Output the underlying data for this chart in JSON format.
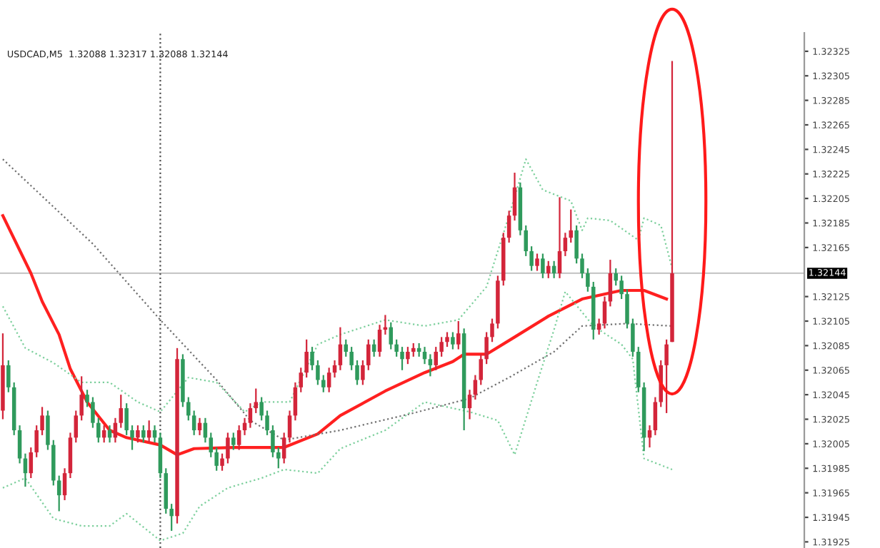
{
  "chart_data": {
    "type": "candlestick",
    "title": "USDCAD,M5  1.32088 1.32317 1.32088 1.32144",
    "categories": [
      null,
      null,
      null,
      null,
      null,
      null,
      null,
      null,
      null,
      null,
      null,
      null,
      null,
      null,
      null,
      null,
      null,
      null,
      null,
      null,
      null,
      null,
      null,
      null,
      null,
      null,
      null,
      null,
      null,
      null,
      null,
      null,
      null,
      null,
      null,
      null,
      null,
      null,
      null,
      null,
      null,
      null,
      null,
      null,
      null,
      null,
      null,
      null,
      null,
      null,
      null,
      null,
      null,
      null,
      null,
      null,
      null,
      null,
      null,
      null,
      null,
      null,
      null,
      null,
      null,
      null,
      null,
      null,
      null,
      null,
      null,
      null,
      null,
      null,
      null,
      null,
      null,
      null,
      null,
      null,
      null,
      null,
      null,
      null,
      null,
      null,
      null,
      null,
      null,
      null,
      null,
      null,
      null,
      null,
      null,
      null,
      null,
      null,
      null,
      null,
      null,
      null,
      null,
      null,
      null,
      null,
      null,
      null,
      null,
      null,
      null,
      null,
      null,
      null,
      null,
      null,
      null,
      null,
      null,
      null,
      null,
      null,
      null,
      null,
      null,
      null,
      null,
      null,
      null,
      null,
      null,
      null,
      null,
      null,
      null,
      null,
      null,
      null,
      null,
      null,
      null,
      null,
      null
    ],
    "ohlc": [
      [
        1.32032,
        1.32095,
        1.32025,
        1.32069
      ],
      [
        1.32069,
        1.32073,
        1.32047,
        1.32051
      ],
      [
        1.32051,
        1.32055,
        1.32012,
        1.32016
      ],
      [
        1.32016,
        1.3202,
        1.31989,
        1.31993
      ],
      [
        1.31993,
        1.31997,
        1.3197,
        1.31981
      ],
      [
        1.31981,
        1.32002,
        1.31977,
        1.31998
      ],
      [
        1.31998,
        1.3202,
        1.31994,
        1.32016
      ],
      [
        1.32016,
        1.32035,
        1.32012,
        1.32028
      ],
      [
        1.32028,
        1.32032,
        1.32,
        1.32004
      ],
      [
        1.32004,
        1.32008,
        1.31971,
        1.31975
      ],
      [
        1.31975,
        1.31979,
        1.3195,
        1.31963
      ],
      [
        1.31963,
        1.31985,
        1.31959,
        1.31981
      ],
      [
        1.31981,
        1.32014,
        1.31977,
        1.3201
      ],
      [
        1.3201,
        1.32032,
        1.32006,
        1.32028
      ],
      [
        1.32028,
        1.3206,
        1.32024,
        1.32045
      ],
      [
        1.32045,
        1.32049,
        1.32035,
        1.32039
      ],
      [
        1.32039,
        1.32043,
        1.32018,
        1.32022
      ],
      [
        1.32022,
        1.32026,
        1.32006,
        1.3201
      ],
      [
        1.3201,
        1.3202,
        1.32006,
        1.32016
      ],
      [
        1.32016,
        1.3202,
        1.32006,
        1.3201
      ],
      [
        1.3201,
        1.32026,
        1.32006,
        1.32022
      ],
      [
        1.32022,
        1.32045,
        1.32018,
        1.32034
      ],
      [
        1.32034,
        1.32038,
        1.32012,
        1.32016
      ],
      [
        1.32016,
        1.3202,
        1.32,
        1.3201
      ],
      [
        1.3201,
        1.3202,
        1.32006,
        1.32016
      ],
      [
        1.32016,
        1.3202,
        1.32006,
        1.3201
      ],
      [
        1.3201,
        1.32024,
        1.32006,
        1.32016
      ],
      [
        1.32016,
        1.3202,
        1.32006,
        1.3201
      ],
      [
        1.3201,
        1.32014,
        1.31977,
        1.31981
      ],
      [
        1.31981,
        1.31985,
        1.31948,
        1.31952
      ],
      [
        1.31952,
        1.31956,
        1.31934,
        1.31946
      ],
      [
        1.31946,
        1.32083,
        1.3194,
        1.32074
      ],
      [
        1.32074,
        1.32078,
        1.32035,
        1.32039
      ],
      [
        1.32039,
        1.32043,
        1.32024,
        1.32028
      ],
      [
        1.32028,
        1.32032,
        1.32012,
        1.32016
      ],
      [
        1.32016,
        1.32026,
        1.32012,
        1.32022
      ],
      [
        1.32022,
        1.32026,
        1.32006,
        1.3201
      ],
      [
        1.3201,
        1.32014,
        1.31994,
        1.31998
      ],
      [
        1.31998,
        1.32002,
        1.31983,
        1.31987
      ],
      [
        1.31987,
        1.31997,
        1.31983,
        1.31993
      ],
      [
        1.31993,
        1.32014,
        1.31989,
        1.3201
      ],
      [
        1.3201,
        1.32014,
        1.32,
        1.32004
      ],
      [
        1.32004,
        1.3202,
        1.32,
        1.32016
      ],
      [
        1.32016,
        1.32026,
        1.32012,
        1.32022
      ],
      [
        1.32022,
        1.32038,
        1.32018,
        1.32034
      ],
      [
        1.32034,
        1.3205,
        1.3203,
        1.32039
      ],
      [
        1.32039,
        1.32043,
        1.32024,
        1.32028
      ],
      [
        1.32028,
        1.32032,
        1.32012,
        1.32016
      ],
      [
        1.32016,
        1.3202,
        1.31994,
        1.31998
      ],
      [
        1.31998,
        1.32002,
        1.31985,
        1.31993
      ],
      [
        1.31993,
        1.32014,
        1.31989,
        1.3201
      ],
      [
        1.3201,
        1.32032,
        1.32006,
        1.32028
      ],
      [
        1.32028,
        1.32055,
        1.32024,
        1.32051
      ],
      [
        1.32051,
        1.32067,
        1.32047,
        1.32063
      ],
      [
        1.32063,
        1.3209,
        1.32059,
        1.3208
      ],
      [
        1.3208,
        1.32084,
        1.32065,
        1.32069
      ],
      [
        1.32069,
        1.32073,
        1.32053,
        1.32057
      ],
      [
        1.32057,
        1.32061,
        1.32047,
        1.32051
      ],
      [
        1.32051,
        1.32067,
        1.32047,
        1.32063
      ],
      [
        1.32063,
        1.32073,
        1.32059,
        1.32069
      ],
      [
        1.32069,
        1.321,
        1.32065,
        1.32086
      ],
      [
        1.32086,
        1.3209,
        1.32076,
        1.3208
      ],
      [
        1.3208,
        1.32084,
        1.32065,
        1.32069
      ],
      [
        1.32069,
        1.32073,
        1.32053,
        1.32057
      ],
      [
        1.32057,
        1.32073,
        1.32053,
        1.32069
      ],
      [
        1.32069,
        1.3209,
        1.32065,
        1.32086
      ],
      [
        1.32086,
        1.3209,
        1.32076,
        1.3208
      ],
      [
        1.3208,
        1.32102,
        1.32076,
        1.32098
      ],
      [
        1.32098,
        1.3211,
        1.32094,
        1.321
      ],
      [
        1.321,
        1.32104,
        1.32082,
        1.32086
      ],
      [
        1.32086,
        1.3209,
        1.32076,
        1.3208
      ],
      [
        1.3208,
        1.32084,
        1.32065,
        1.32074
      ],
      [
        1.32074,
        1.32084,
        1.3207,
        1.3208
      ],
      [
        1.3208,
        1.32087,
        1.32076,
        1.32083
      ],
      [
        1.32083,
        1.32087,
        1.32076,
        1.3208
      ],
      [
        1.3208,
        1.32084,
        1.3207,
        1.32074
      ],
      [
        1.32074,
        1.32078,
        1.3206,
        1.32069
      ],
      [
        1.32069,
        1.32084,
        1.32065,
        1.3208
      ],
      [
        1.3208,
        1.32092,
        1.32076,
        1.32088
      ],
      [
        1.32088,
        1.32096,
        1.32084,
        1.32092
      ],
      [
        1.32092,
        1.32096,
        1.32082,
        1.32086
      ],
      [
        1.32086,
        1.32105,
        1.32082,
        1.32095
      ],
      [
        1.32095,
        1.32099,
        1.32016,
        1.32034
      ],
      [
        1.32034,
        1.32049,
        1.32025,
        1.32045
      ],
      [
        1.32045,
        1.32061,
        1.32041,
        1.32057
      ],
      [
        1.32057,
        1.32078,
        1.32053,
        1.32074
      ],
      [
        1.32074,
        1.32096,
        1.3207,
        1.32092
      ],
      [
        1.32092,
        1.32107,
        1.32088,
        1.32103
      ],
      [
        1.32103,
        1.32142,
        1.32099,
        1.32138
      ],
      [
        1.32138,
        1.32177,
        1.32134,
        1.32173
      ],
      [
        1.32173,
        1.32195,
        1.32169,
        1.32191
      ],
      [
        1.32191,
        1.32226,
        1.32187,
        1.32214
      ],
      [
        1.32214,
        1.32218,
        1.32175,
        1.32179
      ],
      [
        1.32179,
        1.32183,
        1.32158,
        1.32162
      ],
      [
        1.32162,
        1.32166,
        1.32146,
        1.3215
      ],
      [
        1.3215,
        1.3216,
        1.32146,
        1.32156
      ],
      [
        1.32156,
        1.3216,
        1.3214,
        1.32144
      ],
      [
        1.32144,
        1.32154,
        1.3214,
        1.3215
      ],
      [
        1.3215,
        1.32154,
        1.3214,
        1.32144
      ],
      [
        1.32144,
        1.32206,
        1.3214,
        1.32162
      ],
      [
        1.32162,
        1.32177,
        1.32158,
        1.32173
      ],
      [
        1.32173,
        1.32196,
        1.32169,
        1.32179
      ],
      [
        1.32179,
        1.32183,
        1.32152,
        1.32156
      ],
      [
        1.32156,
        1.3216,
        1.3214,
        1.32144
      ],
      [
        1.32144,
        1.32148,
        1.32129,
        1.32133
      ],
      [
        1.32133,
        1.32137,
        1.3209,
        1.32098
      ],
      [
        1.32098,
        1.32107,
        1.32094,
        1.32103
      ],
      [
        1.32103,
        1.32125,
        1.32099,
        1.32121
      ],
      [
        1.32121,
        1.32155,
        1.32117,
        1.32144
      ],
      [
        1.32144,
        1.32148,
        1.32134,
        1.32138
      ],
      [
        1.32138,
        1.32142,
        1.32123,
        1.32127
      ],
      [
        1.32127,
        1.32131,
        1.32099,
        1.32103
      ],
      [
        1.32103,
        1.32107,
        1.32076,
        1.3208
      ],
      [
        1.3208,
        1.32084,
        1.32047,
        1.32051
      ],
      [
        1.32051,
        1.32055,
        1.31999,
        1.3201
      ],
      [
        1.3201,
        1.3202,
        1.32002,
        1.32016
      ],
      [
        1.32016,
        1.32043,
        1.32012,
        1.32039
      ],
      [
        1.32039,
        1.32073,
        1.32035,
        1.32069
      ],
      [
        1.32069,
        1.3209,
        1.3203,
        1.32086
      ],
      [
        1.32088,
        1.32317,
        1.32088,
        1.32144
      ],
      null,
      null,
      null,
      null,
      null,
      null,
      null,
      null,
      null,
      null,
      null,
      null,
      null,
      null,
      null,
      null,
      null,
      null,
      null,
      null,
      null,
      null,
      null
    ],
    "series": [
      {
        "type": "line",
        "color": "#ff2020",
        "line_style": "solid",
        "values": [
          1.32191,
          null,
          null,
          null,
          null,
          1.32144,
          null,
          1.32121,
          null,
          null,
          1.32094,
          null,
          1.32066,
          null,
          null,
          1.32039,
          null,
          null,
          null,
          1.32016,
          null,
          null,
          1.3201,
          null,
          null,
          null,
          null,
          null,
          1.32004,
          null,
          null,
          1.31996,
          null,
          null,
          1.32001,
          null,
          null,
          null,
          null,
          null,
          null,
          1.32002,
          null,
          null,
          null,
          null,
          null,
          null,
          null,
          null,
          1.32002,
          null,
          null,
          null,
          null,
          null,
          1.32013,
          null,
          null,
          null,
          1.32028,
          null,
          null,
          null,
          null,
          null,
          null,
          null,
          1.32048,
          null,
          null,
          null,
          null,
          null,
          null,
          1.32063,
          null,
          null,
          null,
          null,
          1.32072,
          null,
          1.32078,
          null,
          null,
          null,
          1.32078,
          null,
          null,
          null,
          null,
          1.32092,
          null,
          null,
          null,
          null,
          null,
          1.32109,
          null,
          null,
          null,
          null,
          null,
          1.32123,
          null,
          null,
          null,
          null,
          null,
          null,
          1.3213,
          null,
          null,
          null,
          1.3213,
          null,
          null,
          null,
          1.32123,
          null,
          null,
          null,
          null,
          null,
          null,
          null,
          null,
          null,
          null,
          null,
          null,
          null,
          null,
          null,
          null,
          null,
          null,
          null,
          null,
          null,
          null,
          null,
          null
        ]
      },
      {
        "type": "line",
        "color": "#707070",
        "line_style": "dotted",
        "values": [
          1.32237,
          null,
          null,
          null,
          null,
          null,
          null,
          null,
          null,
          null,
          null,
          null,
          null,
          null,
          null,
          null,
          1.32168,
          null,
          null,
          null,
          null,
          null,
          null,
          null,
          null,
          null,
          null,
          null,
          1.32106,
          null,
          null,
          null,
          null,
          null,
          null,
          null,
          null,
          null,
          1.32057,
          null,
          null,
          null,
          null,
          null,
          1.32024,
          null,
          null,
          null,
          null,
          null,
          1.32008,
          null,
          null,
          null,
          null,
          null,
          null,
          null,
          null,
          null,
          1.32016,
          null,
          null,
          null,
          null,
          null,
          null,
          null,
          null,
          null,
          null,
          null,
          null,
          1.3203,
          null,
          null,
          null,
          null,
          null,
          null,
          null,
          null,
          null,
          1.32042,
          null,
          null,
          null,
          null,
          null,
          null,
          1.32059,
          null,
          null,
          null,
          null,
          null,
          null,
          null,
          1.3208,
          null,
          null,
          null,
          null,
          1.32101,
          null,
          null,
          null,
          null,
          null,
          null,
          null,
          1.32103,
          null,
          null,
          null,
          null,
          null,
          null,
          null,
          1.32101,
          null,
          null,
          null,
          null,
          null,
          null,
          null,
          null,
          null,
          null,
          null,
          null,
          null,
          null,
          null,
          null,
          null,
          null,
          null,
          null,
          null,
          null,
          null
        ]
      },
      {
        "type": "line",
        "color": "#7ccf9c",
        "line_style": "dotted",
        "values": [
          1.32117,
          null,
          null,
          null,
          1.32083,
          null,
          null,
          null,
          null,
          1.32071,
          null,
          null,
          null,
          null,
          1.32055,
          null,
          null,
          null,
          null,
          1.32055,
          null,
          null,
          null,
          null,
          1.32039,
          null,
          null,
          null,
          1.32031,
          null,
          null,
          null,
          null,
          1.32059,
          null,
          null,
          null,
          null,
          1.32055,
          null,
          null,
          null,
          null,
          1.32031,
          null,
          null,
          1.32039,
          null,
          null,
          null,
          null,
          1.32039,
          null,
          null,
          null,
          null,
          1.32086,
          null,
          null,
          null,
          1.32094,
          null,
          null,
          null,
          null,
          null,
          null,
          null,
          1.32106,
          null,
          null,
          null,
          null,
          null,
          null,
          1.32101,
          null,
          null,
          null,
          null,
          null,
          1.32106,
          null,
          null,
          null,
          null,
          1.32133,
          null,
          null,
          null,
          1.32191,
          null,
          null,
          1.32237,
          null,
          null,
          1.32212,
          null,
          null,
          null,
          null,
          1.32203,
          null,
          1.32179,
          1.32189,
          null,
          null,
          null,
          1.32187,
          null,
          null,
          null,
          null,
          1.32171,
          1.32189,
          null,
          null,
          1.32183,
          null,
          1.32148,
          null,
          null,
          null,
          null,
          null,
          null,
          null,
          null,
          null,
          null,
          null,
          null,
          null,
          null,
          null,
          null,
          null,
          null,
          null,
          null,
          null,
          null,
          null
        ]
      },
      {
        "type": "line",
        "color": "#7ccf9c",
        "line_style": "dotted",
        "values": [
          1.31969,
          null,
          null,
          null,
          1.31977,
          null,
          null,
          null,
          null,
          1.31944,
          null,
          null,
          null,
          null,
          1.31938,
          null,
          null,
          null,
          null,
          1.31938,
          null,
          null,
          1.31948,
          null,
          null,
          null,
          null,
          null,
          1.31926,
          null,
          null,
          null,
          1.31932,
          null,
          null,
          1.31954,
          null,
          null,
          null,
          null,
          1.31969,
          null,
          null,
          null,
          null,
          null,
          1.31977,
          null,
          null,
          null,
          1.31984,
          null,
          null,
          null,
          null,
          null,
          1.31981,
          null,
          null,
          null,
          1.32001,
          null,
          null,
          null,
          null,
          null,
          null,
          null,
          1.32016,
          null,
          null,
          null,
          null,
          null,
          null,
          1.32039,
          null,
          null,
          null,
          null,
          null,
          null,
          null,
          1.32031,
          null,
          null,
          null,
          null,
          1.32024,
          null,
          null,
          1.31996,
          null,
          null,
          null,
          1.32055,
          null,
          null,
          1.32098,
          null,
          1.32129,
          null,
          null,
          null,
          null,
          1.32101,
          null,
          null,
          null,
          null,
          1.32086,
          null,
          1.32074,
          null,
          1.31993,
          null,
          null,
          null,
          null,
          1.31984,
          null,
          null,
          null,
          null,
          null,
          null,
          null,
          null,
          null,
          null,
          null,
          null,
          null,
          null,
          null,
          null,
          null,
          null,
          null,
          null,
          null,
          null,
          null
        ]
      }
    ],
    "ylim": [
      1.3192,
      1.3234
    ],
    "yticks": [
      1.32325,
      1.32305,
      1.32285,
      1.32265,
      1.32245,
      1.32225,
      1.32205,
      1.32185,
      1.32165,
      1.32125,
      1.32105,
      1.32085,
      1.32065,
      1.32045,
      1.32025,
      1.32005,
      1.31985,
      1.31965,
      1.31945,
      1.31925
    ],
    "tick_labels": "y",
    "ref_lines": [
      {
        "axis": "y",
        "value": 1.32144,
        "label": "1.32144",
        "color": "#c8c8c8",
        "line_style": "solid"
      }
    ],
    "grid": false,
    "legend": false
  }
}
